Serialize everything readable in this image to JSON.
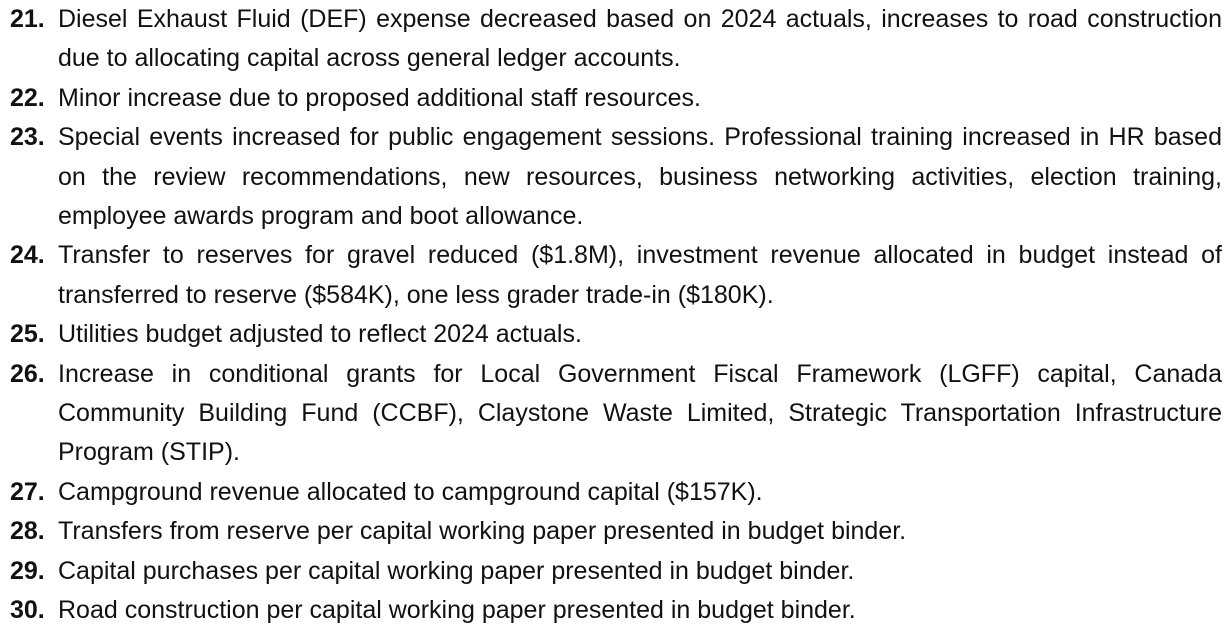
{
  "notes": [
    {
      "number": "21.",
      "text": "Diesel Exhaust Fluid (DEF) expense decreased based on 2024 actuals, increases to road construction due to allocating capital across general ledger accounts."
    },
    {
      "number": "22.",
      "text": "Minor increase due to proposed additional staff resources."
    },
    {
      "number": "23.",
      "text": "Special events increased for public engagement sessions. Professional training increased in HR based on the review recommendations, new resources, business networking activities, election training, employee awards program and boot allowance."
    },
    {
      "number": "24.",
      "text": "Transfer to reserves for gravel reduced ($1.8M), investment revenue allocated in budget instead of transferred to reserve ($584K), one less grader trade-in ($180K)."
    },
    {
      "number": "25.",
      "text": "Utilities budget adjusted to reflect 2024 actuals."
    },
    {
      "number": "26.",
      "text": "Increase in conditional grants for Local Government Fiscal Framework (LGFF) capital, Canada Community Building Fund (CCBF), Claystone Waste Limited, Strategic Transportation Infrastructure Program (STIP)."
    },
    {
      "number": "27.",
      "text": "Campground revenue allocated to campground capital ($157K)."
    },
    {
      "number": "28.",
      "text": "Transfers from reserve per capital working paper presented in budget binder."
    },
    {
      "number": "29.",
      "text": "Capital purchases per capital working paper presented in budget binder."
    },
    {
      "number": "30.",
      "text": "Road construction per capital working paper presented in budget binder."
    }
  ]
}
